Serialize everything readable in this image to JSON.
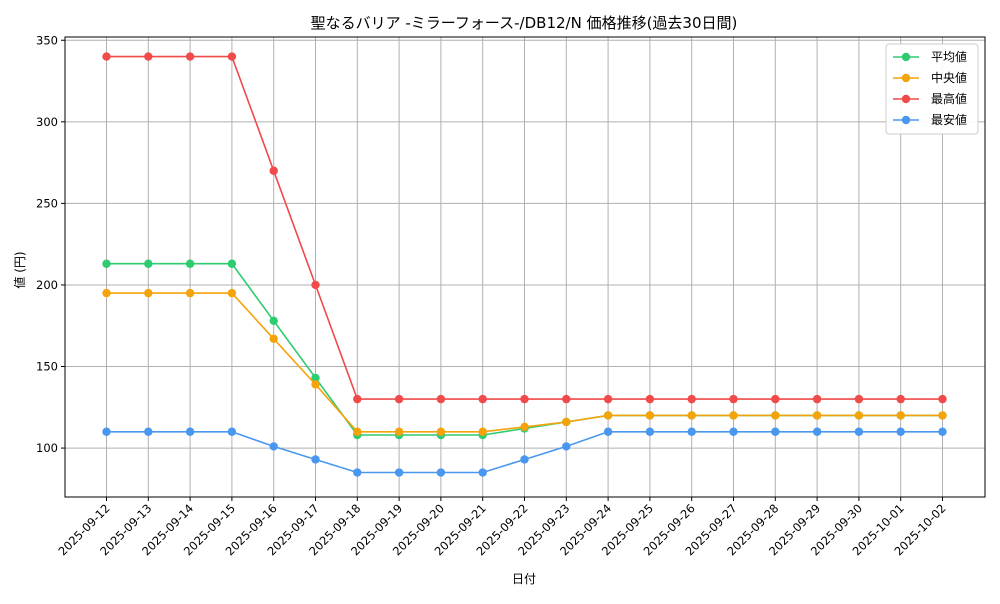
{
  "chart_data": {
    "type": "line",
    "title": "聖なるバリア -ミラーフォース-/DB12/N 価格推移(過去30日間)",
    "xlabel": "日付",
    "ylabel": "値 (円)",
    "ylim": [
      70,
      352
    ],
    "yticks": [
      100,
      150,
      200,
      250,
      300,
      350
    ],
    "grid": true,
    "legend_position": "top-right",
    "categories": [
      "2025-09-12",
      "2025-09-13",
      "2025-09-14",
      "2025-09-15",
      "2025-09-16",
      "2025-09-17",
      "2025-09-18",
      "2025-09-19",
      "2025-09-20",
      "2025-09-21",
      "2025-09-22",
      "2025-09-23",
      "2025-09-24",
      "2025-09-25",
      "2025-09-26",
      "2025-09-27",
      "2025-09-28",
      "2025-09-29",
      "2025-09-30",
      "2025-10-01",
      "2025-10-02"
    ],
    "series": [
      {
        "name": "平均値",
        "color": "#2ecc71",
        "values": [
          213,
          213,
          213,
          213,
          178,
          143,
          108,
          108,
          108,
          108,
          112,
          116,
          120,
          120,
          120,
          120,
          120,
          120,
          120,
          120,
          120
        ]
      },
      {
        "name": "中央値",
        "color": "#f5a30a",
        "values": [
          195,
          195,
          195,
          195,
          167,
          139,
          110,
          110,
          110,
          110,
          113,
          116,
          120,
          120,
          120,
          120,
          120,
          120,
          120,
          120,
          120
        ]
      },
      {
        "name": "最高値",
        "color": "#f04a4a",
        "values": [
          340,
          340,
          340,
          340,
          270,
          200,
          130,
          130,
          130,
          130,
          130,
          130,
          130,
          130,
          130,
          130,
          130,
          130,
          130,
          130,
          130
        ]
      },
      {
        "name": "最安値",
        "color": "#4a97f0",
        "values": [
          110,
          110,
          110,
          110,
          101,
          93,
          85,
          85,
          85,
          85,
          93,
          101,
          110,
          110,
          110,
          110,
          110,
          110,
          110,
          110,
          110
        ]
      }
    ]
  }
}
